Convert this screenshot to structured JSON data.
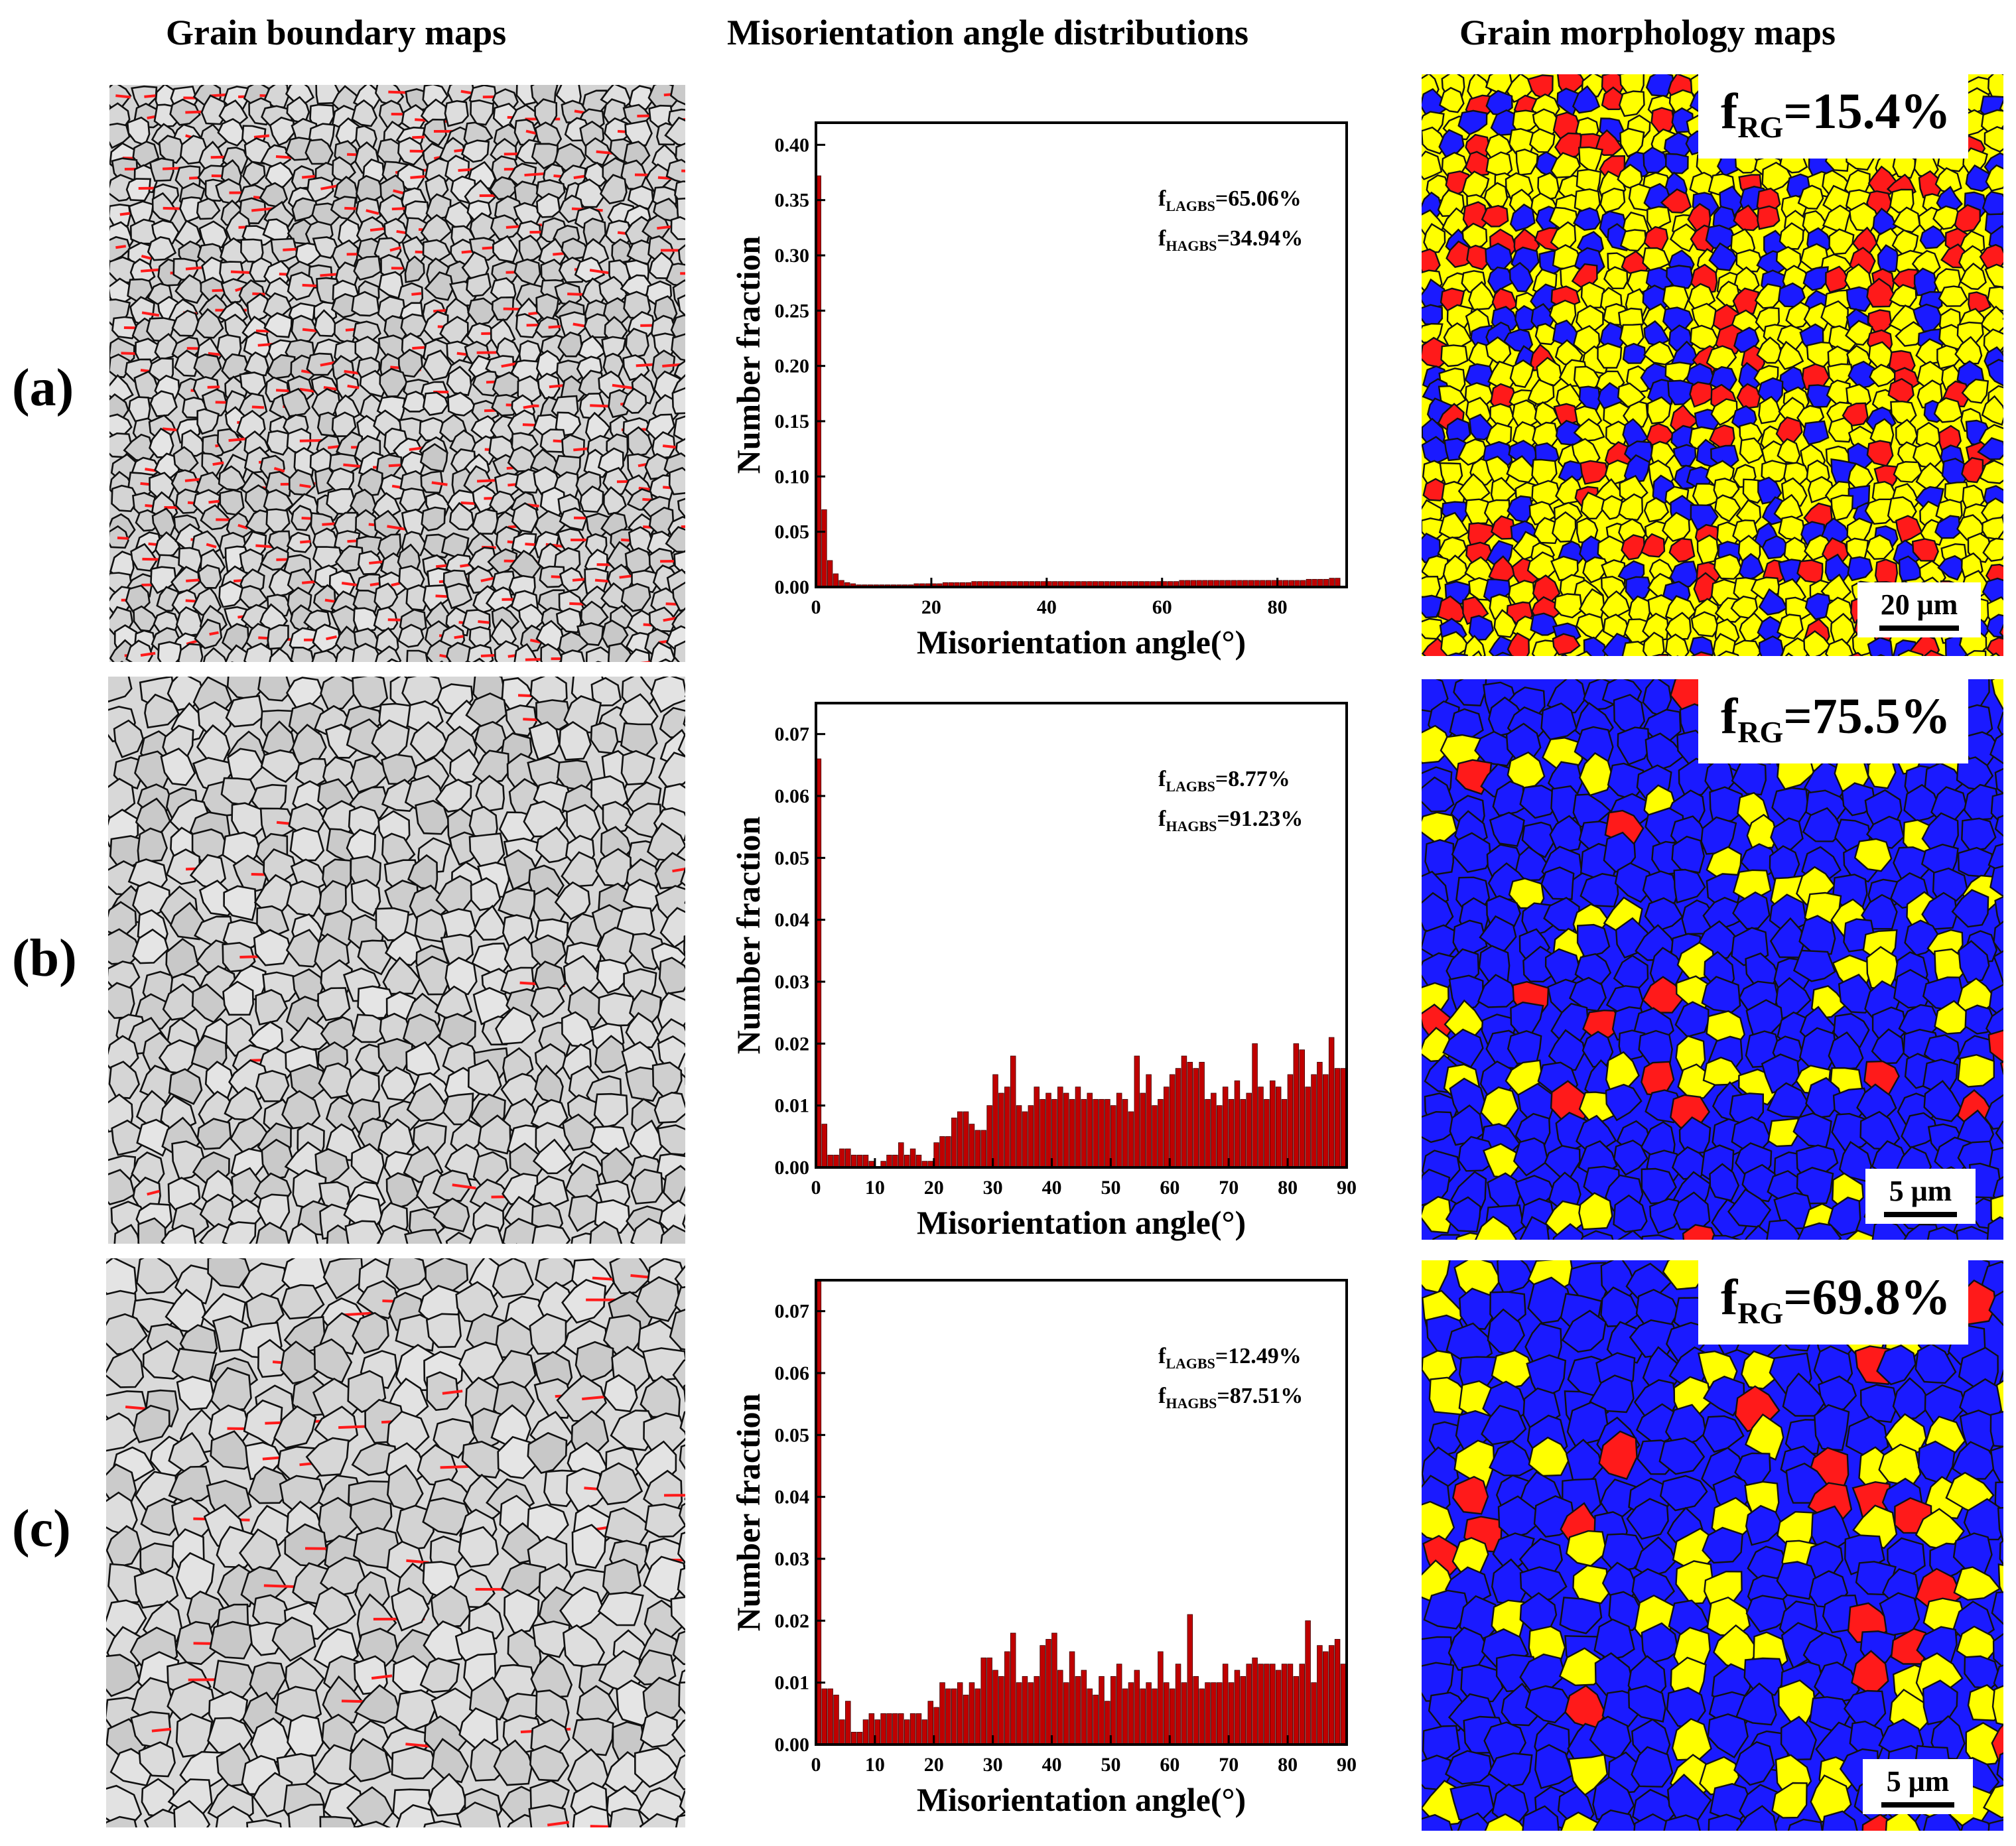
{
  "column_titles": {
    "grain_boundary": "Grain boundary maps",
    "misorientation": "Misorientation angle distributions",
    "morphology": "Grain morphology maps"
  },
  "rows": [
    {
      "label": "(a)",
      "frg_base": "f",
      "frg_sub": "RG",
      "frg_value": "=15.4%",
      "scale": "20 μm"
    },
    {
      "label": "(b)",
      "frg_base": "f",
      "frg_sub": "RG",
      "frg_value": "=75.5%",
      "scale": "5 μm"
    },
    {
      "label": "(c)",
      "frg_base": "f",
      "frg_sub": "RG",
      "frg_value": "=69.8%",
      "scale": "5 μm"
    }
  ],
  "colors": {
    "bar_fill": "#c00000",
    "boundary_red": "#ff1a1a",
    "map_yellow": "#ffff00",
    "map_blue": "#1a1aff",
    "map_red": "#ff1a1a"
  },
  "chart_data": [
    {
      "type": "bar",
      "xlabel": "Misorientation angle(°)",
      "ylabel": "Number fraction",
      "xlim": [
        0,
        92
      ],
      "ylim": [
        0,
        0.42
      ],
      "x_ticks": [
        0,
        20,
        40,
        60,
        80
      ],
      "y_ticks": [
        0.0,
        0.05,
        0.1,
        0.15,
        0.2,
        0.25,
        0.3,
        0.35,
        0.4
      ],
      "y_tick_labels": [
        "0.00",
        "0.05",
        "0.10",
        "0.15",
        "0.20",
        "0.25",
        "0.30",
        "0.35",
        "0.40"
      ],
      "annotation_base": "f",
      "annotation_lagbs_sub": "LAGBS",
      "annotation_lagbs": "=65.06%",
      "annotation_hagbs_sub": "HAGBS",
      "annotation_hagbs": "=34.94%",
      "bin_width": 1,
      "values": [
        0.372,
        0.07,
        0.024,
        0.012,
        0.006,
        0.004,
        0.003,
        0.002,
        0.002,
        0.002,
        0.002,
        0.002,
        0.002,
        0.002,
        0.002,
        0.002,
        0.002,
        0.003,
        0.003,
        0.003,
        0.003,
        0.003,
        0.004,
        0.004,
        0.004,
        0.004,
        0.004,
        0.005,
        0.005,
        0.005,
        0.005,
        0.005,
        0.005,
        0.005,
        0.005,
        0.005,
        0.005,
        0.005,
        0.005,
        0.005,
        0.005,
        0.005,
        0.005,
        0.005,
        0.005,
        0.005,
        0.005,
        0.005,
        0.005,
        0.005,
        0.005,
        0.005,
        0.005,
        0.005,
        0.005,
        0.005,
        0.005,
        0.005,
        0.005,
        0.005,
        0.005,
        0.005,
        0.005,
        0.006,
        0.006,
        0.006,
        0.006,
        0.006,
        0.006,
        0.006,
        0.006,
        0.006,
        0.006,
        0.006,
        0.006,
        0.006,
        0.006,
        0.006,
        0.006,
        0.006,
        0.006,
        0.006,
        0.006,
        0.006,
        0.006,
        0.007,
        0.007,
        0.007,
        0.007,
        0.008,
        0.008
      ]
    },
    {
      "type": "bar",
      "xlabel": "Misorientation angle(°)",
      "ylabel": "Number fraction",
      "xlim": [
        0,
        90
      ],
      "ylim": [
        0,
        0.075
      ],
      "x_ticks": [
        0,
        10,
        20,
        30,
        40,
        50,
        60,
        70,
        80,
        90
      ],
      "y_ticks": [
        0.0,
        0.01,
        0.02,
        0.03,
        0.04,
        0.05,
        0.06,
        0.07
      ],
      "y_tick_labels": [
        "0.00",
        "0.01",
        "0.02",
        "0.03",
        "0.04",
        "0.05",
        "0.06",
        "0.07"
      ],
      "annotation_base": "f",
      "annotation_lagbs_sub": "LAGBS",
      "annotation_lagbs": "=8.77%",
      "annotation_hagbs_sub": "HAGBS",
      "annotation_hagbs": "=91.23%",
      "bin_width": 1,
      "values": [
        0.066,
        0.007,
        0.002,
        0.002,
        0.003,
        0.003,
        0.002,
        0.002,
        0.002,
        0.001,
        0.0,
        0.001,
        0.002,
        0.002,
        0.004,
        0.002,
        0.003,
        0.002,
        0.001,
        0.001,
        0.004,
        0.005,
        0.005,
        0.008,
        0.009,
        0.009,
        0.007,
        0.006,
        0.006,
        0.01,
        0.015,
        0.012,
        0.013,
        0.018,
        0.01,
        0.009,
        0.01,
        0.013,
        0.011,
        0.012,
        0.011,
        0.013,
        0.012,
        0.011,
        0.013,
        0.011,
        0.012,
        0.011,
        0.011,
        0.011,
        0.01,
        0.012,
        0.011,
        0.009,
        0.018,
        0.012,
        0.015,
        0.01,
        0.011,
        0.013,
        0.015,
        0.016,
        0.018,
        0.017,
        0.016,
        0.017,
        0.011,
        0.012,
        0.01,
        0.013,
        0.011,
        0.014,
        0.011,
        0.012,
        0.02,
        0.013,
        0.011,
        0.014,
        0.013,
        0.011,
        0.015,
        0.02,
        0.019,
        0.013,
        0.015,
        0.017,
        0.015,
        0.021,
        0.016,
        0.016
      ]
    },
    {
      "type": "bar",
      "xlabel": "Misorientation angle(°)",
      "ylabel": "Number fraction",
      "xlim": [
        0,
        90
      ],
      "ylim": [
        0,
        0.075
      ],
      "x_ticks": [
        0,
        10,
        20,
        30,
        40,
        50,
        60,
        70,
        80,
        90
      ],
      "y_ticks": [
        0.0,
        0.01,
        0.02,
        0.03,
        0.04,
        0.05,
        0.06,
        0.07
      ],
      "y_tick_labels": [
        "0.00",
        "0.01",
        "0.02",
        "0.03",
        "0.04",
        "0.05",
        "0.06",
        "0.07"
      ],
      "annotation_base": "f",
      "annotation_lagbs_sub": "LAGBS",
      "annotation_lagbs": "=12.49%",
      "annotation_hagbs_sub": "HAGBS",
      "annotation_hagbs": "=87.51%",
      "bin_width": 1,
      "values": [
        0.075,
        0.009,
        0.009,
        0.008,
        0.004,
        0.007,
        0.002,
        0.002,
        0.004,
        0.005,
        0.004,
        0.005,
        0.005,
        0.005,
        0.005,
        0.004,
        0.005,
        0.005,
        0.004,
        0.007,
        0.006,
        0.01,
        0.009,
        0.009,
        0.01,
        0.008,
        0.01,
        0.009,
        0.014,
        0.014,
        0.012,
        0.011,
        0.015,
        0.018,
        0.01,
        0.011,
        0.01,
        0.011,
        0.016,
        0.017,
        0.018,
        0.012,
        0.01,
        0.015,
        0.011,
        0.012,
        0.009,
        0.008,
        0.011,
        0.007,
        0.011,
        0.013,
        0.009,
        0.01,
        0.012,
        0.009,
        0.01,
        0.009,
        0.015,
        0.01,
        0.009,
        0.013,
        0.01,
        0.021,
        0.011,
        0.009,
        0.01,
        0.01,
        0.01,
        0.013,
        0.01,
        0.012,
        0.011,
        0.013,
        0.014,
        0.013,
        0.013,
        0.013,
        0.012,
        0.013,
        0.013,
        0.011,
        0.013,
        0.02,
        0.01,
        0.016,
        0.015,
        0.016,
        0.017,
        0.013
      ]
    }
  ]
}
